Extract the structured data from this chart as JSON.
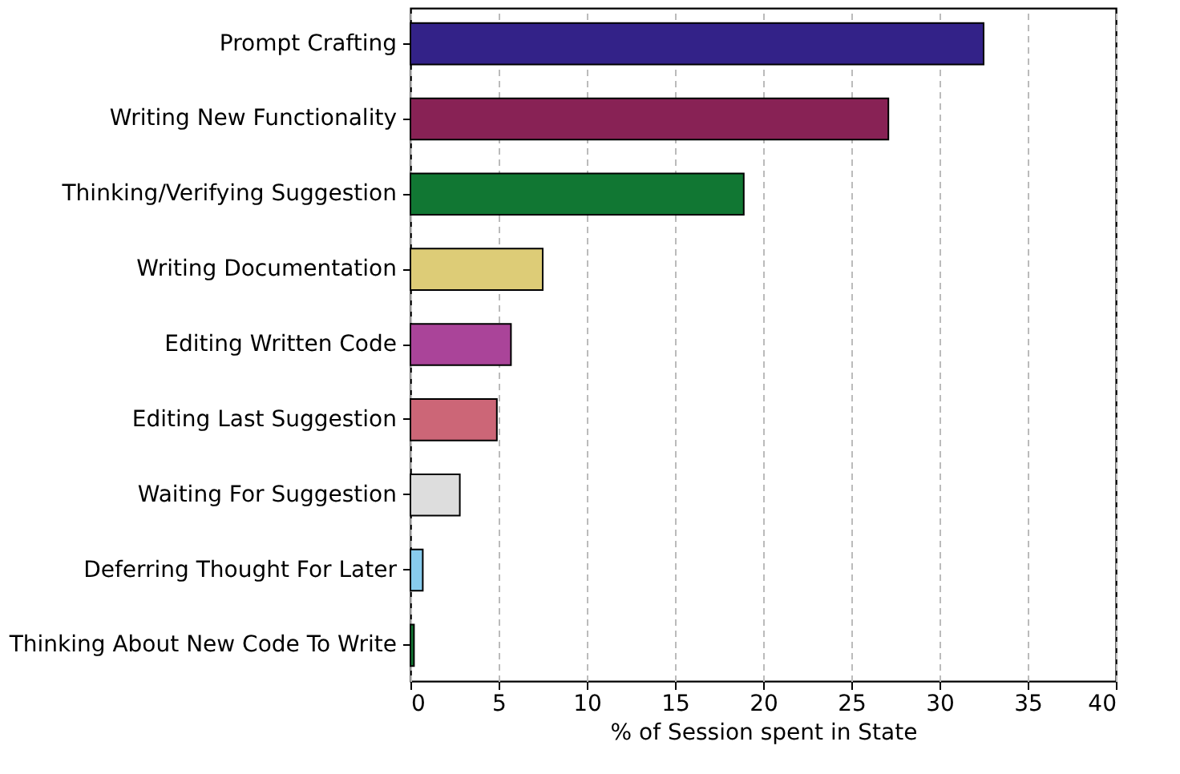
{
  "chart_data": {
    "type": "bar",
    "orientation": "horizontal",
    "xlabel": "% of Session spent in State",
    "categories": [
      "Prompt Crafting",
      "Writing New Functionality",
      "Thinking/Verifying Suggestion",
      "Writing Documentation",
      "Editing Written Code",
      "Editing Last Suggestion",
      "Waiting For Suggestion",
      "Deferring Thought For Later",
      "Thinking About New Code To Write"
    ],
    "values": [
      32.5,
      27.1,
      18.9,
      7.5,
      5.7,
      4.9,
      2.8,
      0.7,
      0.2
    ],
    "colors": [
      "#332288",
      "#882255",
      "#117733",
      "#ddcc77",
      "#aa4499",
      "#cc6677",
      "#dddddd",
      "#88ccee",
      "#117733"
    ],
    "xlim": [
      0,
      40
    ],
    "xticks": [
      0,
      5,
      10,
      15,
      20,
      25,
      30,
      35,
      40
    ],
    "grid": "x",
    "line_style": "dashed"
  }
}
